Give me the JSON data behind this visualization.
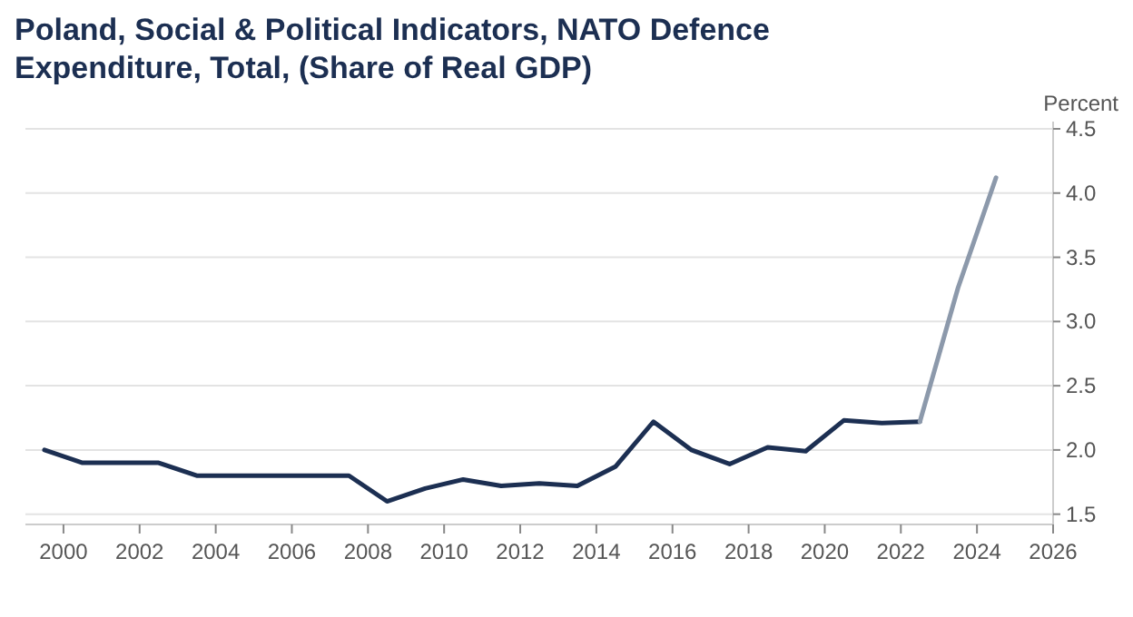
{
  "chart_data": {
    "type": "line",
    "title": "Poland, Social & Political Indicators, NATO Defence Expenditure, Total, (Share of Real GDP)",
    "ylabel": "Percent",
    "xlim": [
      1999,
      2026
    ],
    "xticks": [
      2000,
      2002,
      2004,
      2006,
      2008,
      2010,
      2012,
      2014,
      2016,
      2018,
      2020,
      2022,
      2024,
      2026
    ],
    "ylim": [
      1.42,
      4.5
    ],
    "yticks": [
      {
        "value": 1.5,
        "label": "1.5"
      },
      {
        "value": 2,
        "label": "2.0"
      },
      {
        "value": 2.5,
        "label": "2.5"
      },
      {
        "value": 3,
        "label": "3.0"
      },
      {
        "value": 3.5,
        "label": "3.5"
      },
      {
        "value": 4,
        "label": "4.0"
      },
      {
        "value": 4.5,
        "label": "4.5"
      }
    ],
    "grid": "y",
    "line_style": "solid",
    "marker": "none",
    "series": [
      {
        "color": "#1c2f52",
        "x": [
          1999.5,
          2000.5,
          2001.5,
          2002.5,
          2003.5,
          2004.5,
          2005.5,
          2006.5,
          2007.5,
          2008.5,
          2009.5,
          2010.5,
          2011.5,
          2012.5,
          2013.5,
          2014.5,
          2015.5,
          2016.5,
          2017.5,
          2018.5,
          2019.5,
          2020.5,
          2021.5,
          2022.5
        ],
        "values": [
          2.0,
          1.9,
          1.9,
          1.9,
          1.8,
          1.8,
          1.8,
          1.8,
          1.8,
          1.6,
          1.7,
          1.77,
          1.72,
          1.74,
          1.72,
          1.87,
          2.22,
          2.0,
          1.89,
          2.02,
          1.99,
          2.23,
          2.21,
          2.22
        ]
      },
      {
        "color": "#8c99ab",
        "x": [
          2022.5,
          2023.5,
          2024.5
        ],
        "values": [
          2.22,
          3.26,
          4.12
        ]
      }
    ]
  }
}
